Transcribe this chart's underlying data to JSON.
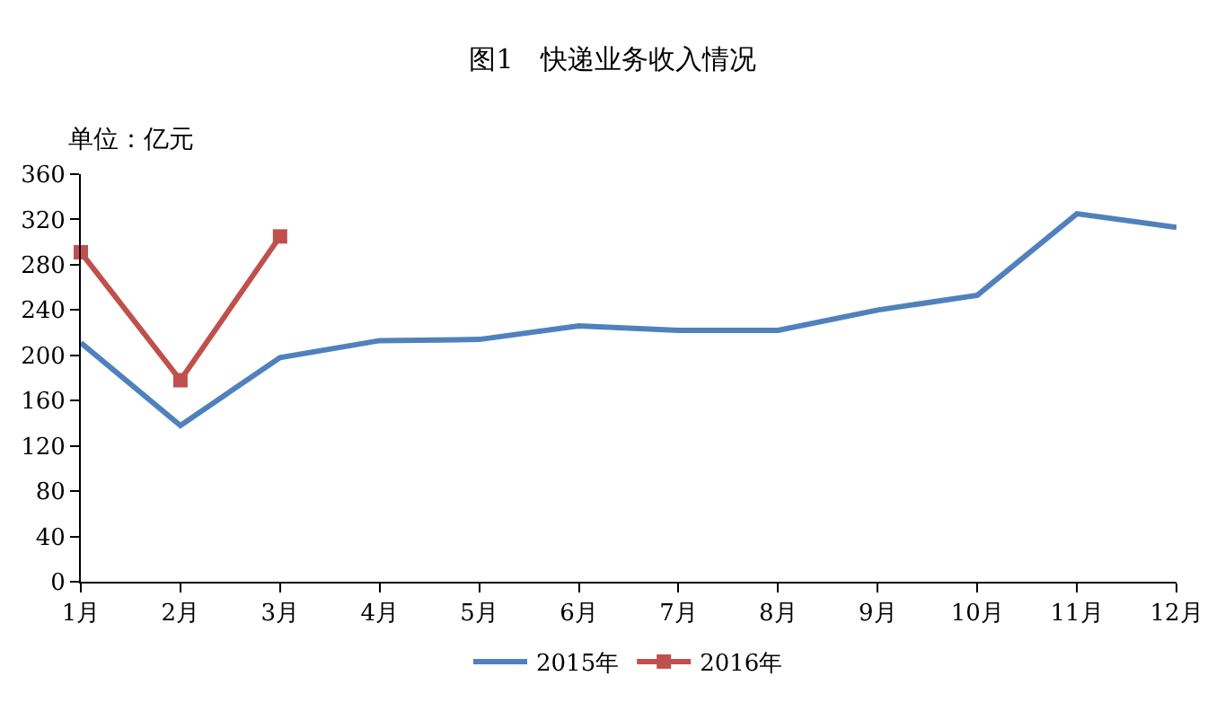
{
  "chart_data": {
    "type": "line",
    "title": "图1　快递业务收入情况",
    "ylabel": "单位：亿元",
    "categories": [
      "1月",
      "2月",
      "3月",
      "4月",
      "5月",
      "6月",
      "7月",
      "8月",
      "9月",
      "10月",
      "11月",
      "12月"
    ],
    "series": [
      {
        "name": "2015年",
        "color": "#4f81bd",
        "marker": "none",
        "values": [
          211,
          138,
          198,
          213,
          214,
          226,
          222,
          222,
          240,
          253,
          325,
          313
        ]
      },
      {
        "name": "2016年",
        "color": "#c0504d",
        "marker": "square",
        "values": [
          291,
          178,
          305,
          null,
          null,
          null,
          null,
          null,
          null,
          null,
          null,
          null
        ]
      }
    ],
    "ylim": [
      0,
      360
    ],
    "yticks": [
      0,
      40,
      80,
      120,
      160,
      200,
      240,
      280,
      320,
      360
    ],
    "legend": "bottom"
  }
}
